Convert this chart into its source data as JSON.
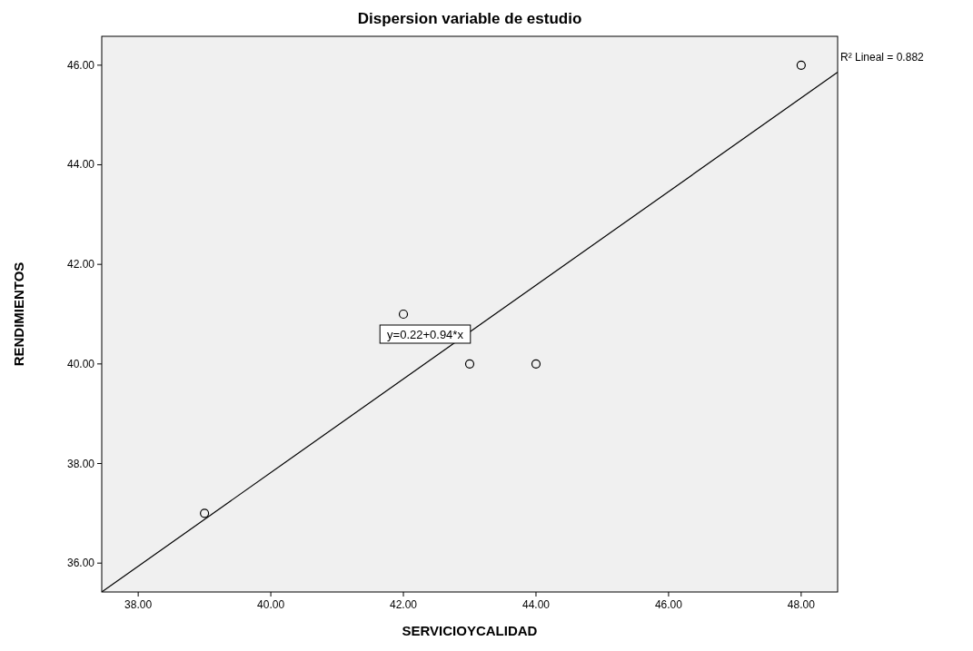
{
  "chart_data": {
    "type": "scatter",
    "title": "Dispersion variable de estudio",
    "xlabel": "SERVICIOYCALIDAD",
    "ylabel": "RENDIMIENTOS",
    "xlim": [
      37.45,
      48.55
    ],
    "ylim": [
      35.42,
      46.58
    ],
    "xticks": [
      {
        "value": 38,
        "label": "38.00"
      },
      {
        "value": 40,
        "label": "40.00"
      },
      {
        "value": 42,
        "label": "42.00"
      },
      {
        "value": 44,
        "label": "44.00"
      },
      {
        "value": 46,
        "label": "46.00"
      },
      {
        "value": 48,
        "label": "48.00"
      }
    ],
    "yticks": [
      {
        "value": 36,
        "label": "36.00"
      },
      {
        "value": 38,
        "label": "38.00"
      },
      {
        "value": 40,
        "label": "40.00"
      },
      {
        "value": 42,
        "label": "42.00"
      },
      {
        "value": 44,
        "label": "44.00"
      },
      {
        "value": 46,
        "label": "46.00"
      }
    ],
    "series": [
      {
        "color": "#000000",
        "marker": "circle",
        "x": [
          39,
          42,
          43,
          44,
          48
        ],
        "values": [
          37,
          41,
          40,
          40,
          46
        ]
      },
      {
        "type": "line",
        "color": "#000000",
        "x": [
          37.45,
          48.55
        ],
        "values": [
          35.42,
          45.86
        ]
      }
    ],
    "line_style": "solid",
    "grid": false,
    "annotations": [
      "y=0.22+0.94*x",
      "R² Lineal = 0.882"
    ]
  }
}
